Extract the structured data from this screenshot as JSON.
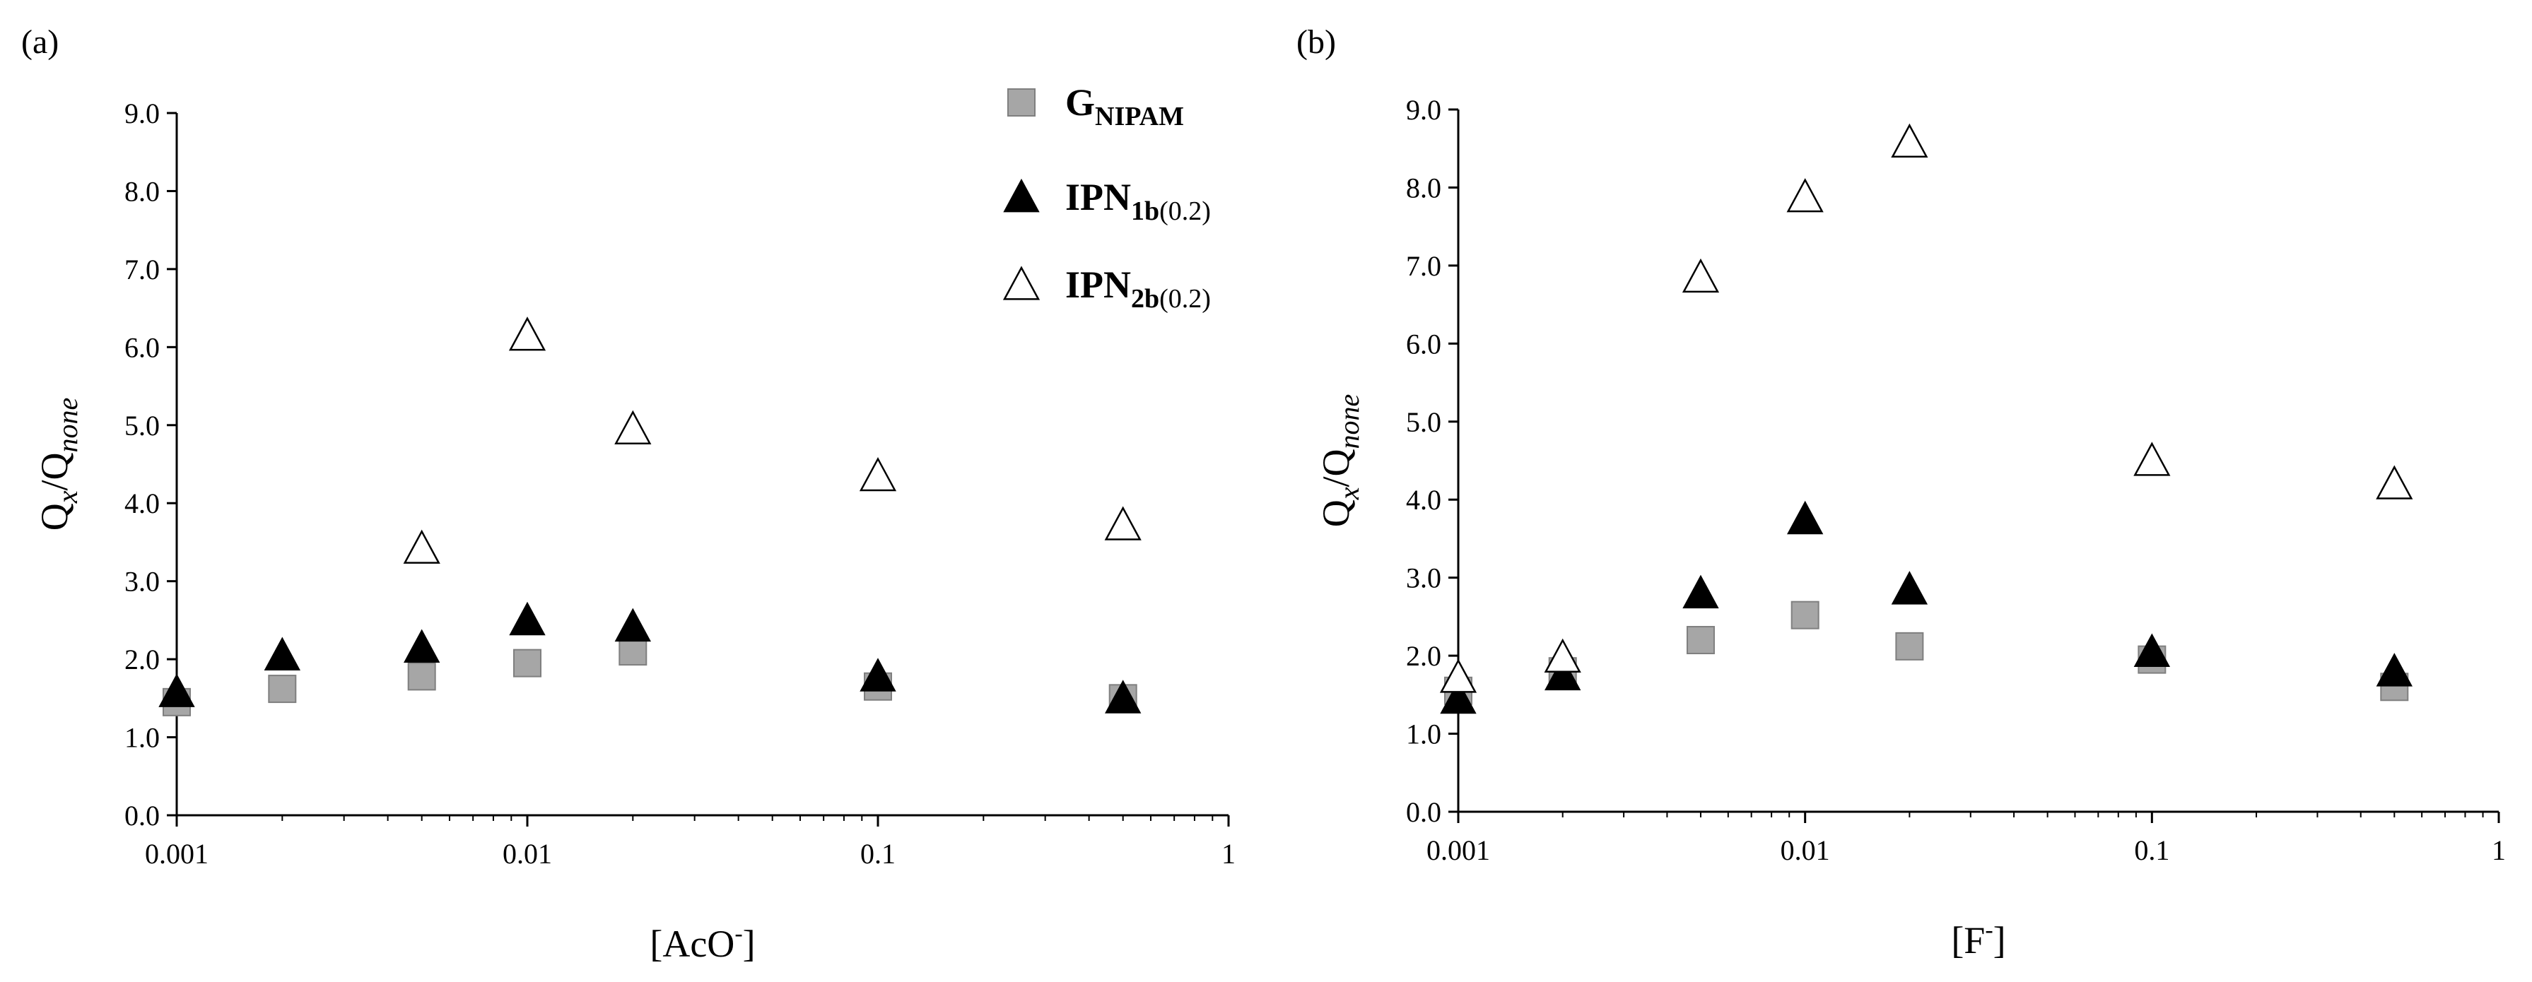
{
  "figure": {
    "panels": [
      "(a)",
      "(b)"
    ],
    "y_tick_labels": [
      "0.0",
      "1.0",
      "2.0",
      "3.0",
      "4.0",
      "5.0",
      "6.0",
      "7.0",
      "8.0",
      "9.0"
    ],
    "x_tick_labels": [
      "0.001",
      "0.01",
      "0.1",
      "1"
    ]
  },
  "legend": [
    {
      "main": "G",
      "sub": "NIPAM",
      "paren": "",
      "marker": "square"
    },
    {
      "main": "IPN",
      "sub": "1b",
      "paren": "(0.2)",
      "marker": "triangle-filled"
    },
    {
      "main": "IPN",
      "sub": "2b",
      "paren": "(0.2)",
      "marker": "triangle-open"
    }
  ],
  "colors": {
    "square_fill": "#a6a6a6",
    "square_edge": "#7f7f7f",
    "triangle_filled": "#000000",
    "triangle_open": "#ffffff"
  },
  "chart_data": [
    {
      "type": "scatter",
      "panel": "(a)",
      "title": "",
      "xlabel": {
        "text": "[AcO",
        "sup": "-",
        "close": "]"
      },
      "ylabel": {
        "q": "Q",
        "x": "x",
        "slash": "/Q",
        "none": "none"
      },
      "xscale": "log",
      "xlim": [
        0.001,
        1
      ],
      "ylim": [
        0,
        9
      ],
      "y_ticks": [
        0,
        1,
        2,
        3,
        4,
        5,
        6,
        7,
        8,
        9
      ],
      "x_ticks": [
        0.001,
        0.01,
        0.1,
        1
      ],
      "grid": false,
      "legend_position": "top-right",
      "series": [
        {
          "name": "GNIPAM",
          "marker": "square",
          "x": [
            0.001,
            0.002,
            0.005,
            0.01,
            0.02,
            0.1,
            0.5
          ],
          "y": [
            1.45,
            1.62,
            1.78,
            1.95,
            2.1,
            1.65,
            1.5
          ]
        },
        {
          "name": "IPN1b(0.2)",
          "marker": "triangle-filled",
          "x": [
            0.001,
            0.002,
            0.005,
            0.01,
            0.02,
            0.1,
            0.5
          ],
          "y": [
            1.58,
            2.05,
            2.15,
            2.5,
            2.42,
            1.78,
            1.5
          ]
        },
        {
          "name": "IPN2b(0.2)",
          "marker": "triangle-open",
          "x": [
            0.005,
            0.01,
            0.02,
            0.1,
            0.5
          ],
          "y": [
            3.42,
            6.15,
            4.95,
            4.35,
            3.72
          ]
        }
      ]
    },
    {
      "type": "scatter",
      "panel": "(b)",
      "title": "",
      "xlabel": {
        "text": "[F",
        "sup": "-",
        "close": "]"
      },
      "ylabel": {
        "q": "Q",
        "x": "x",
        "slash": "/Q",
        "none": "none"
      },
      "xscale": "log",
      "xlim": [
        0.001,
        1
      ],
      "ylim": [
        0,
        9
      ],
      "y_ticks": [
        0,
        1,
        2,
        3,
        4,
        5,
        6,
        7,
        8,
        9
      ],
      "x_ticks": [
        0.001,
        0.01,
        0.1,
        1
      ],
      "grid": false,
      "series": [
        {
          "name": "GNIPAM",
          "marker": "square",
          "x": [
            0.001,
            0.002,
            0.005,
            0.01,
            0.02,
            0.1,
            0.5
          ],
          "y": [
            1.55,
            1.8,
            2.2,
            2.52,
            2.12,
            1.95,
            1.6
          ]
        },
        {
          "name": "IPN1b(0.2)",
          "marker": "triangle-filled",
          "x": [
            0.001,
            0.002,
            0.005,
            0.01,
            0.02,
            0.1,
            0.5
          ],
          "y": [
            1.45,
            1.75,
            2.8,
            3.75,
            2.85,
            2.05,
            1.8
          ]
        },
        {
          "name": "IPN2b(0.2)",
          "marker": "triangle-open",
          "x": [
            0.001,
            0.002,
            0.005,
            0.01,
            0.02,
            0.1,
            0.5
          ],
          "y": [
            1.72,
            1.98,
            6.85,
            7.88,
            8.58,
            4.5,
            4.2
          ]
        }
      ]
    }
  ]
}
